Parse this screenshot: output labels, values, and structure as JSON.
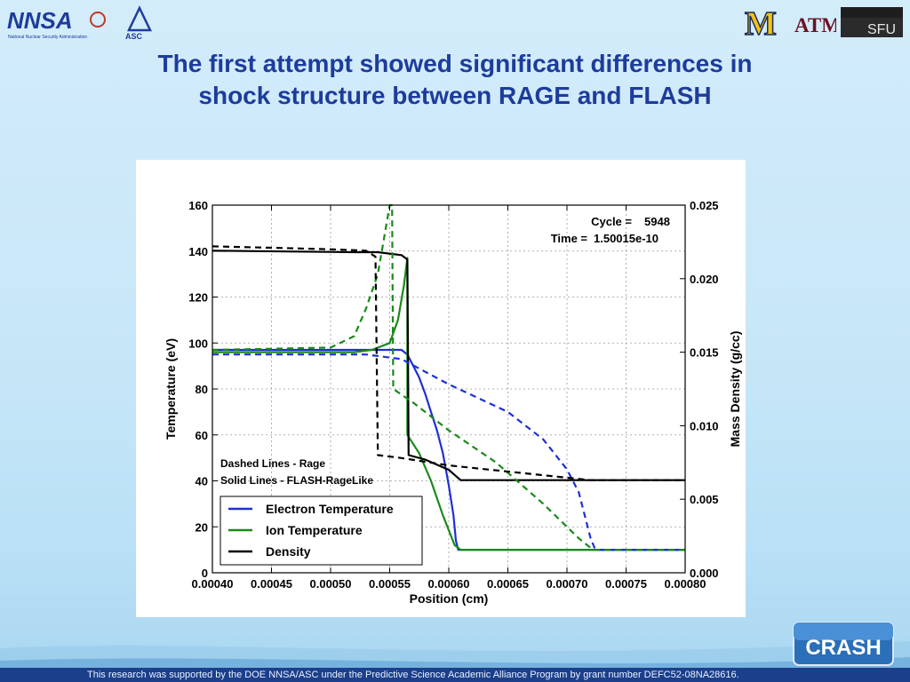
{
  "slide": {
    "title_line1": "The first attempt showed significant differences in",
    "title_line2": "shock structure between RAGE and FLASH",
    "footer": "This research was supported by the DOE NNSA/ASC under the Predictive Science Academic Alliance Program by grant number DEFC52-08NA28616."
  },
  "logos": {
    "nnsa": "NNSA",
    "nnsa_sub": "National Nuclear Security Administration",
    "asc": "ASC",
    "umich": "M",
    "tamu": "ATM",
    "sfu": "SFU",
    "crash": "CRASH"
  },
  "colors": {
    "title": "#1d3c9b",
    "electron": "#1f2fd6",
    "ion": "#1a8a1a",
    "density": "#000000"
  },
  "chart_data": {
    "type": "line",
    "xlabel": "Position (cm)",
    "ylabel": "Temperature (eV)",
    "y2label": "Mass Density (g/cc)",
    "xlim": [
      0.0004,
      0.0008
    ],
    "ylim": [
      0,
      160
    ],
    "y2lim": [
      0.0,
      0.025
    ],
    "x_ticks": [
      "0.00040",
      "0.00045",
      "0.00050",
      "0.00055",
      "0.00060",
      "0.00065",
      "0.00070",
      "0.00075",
      "0.00080"
    ],
    "y_ticks": [
      "0",
      "20",
      "40",
      "60",
      "80",
      "100",
      "120",
      "140",
      "160"
    ],
    "y2_ticks": [
      "0.000",
      "0.005",
      "0.010",
      "0.015",
      "0.020",
      "0.025"
    ],
    "grid": true,
    "cycle_label": "Cycle =",
    "cycle_value": "5948",
    "time_label": "Time =",
    "time_value": "1.50015e-10",
    "note_dashed": "Dashed Lines - Rage",
    "note_solid": "Solid Lines - FLASH-RageLike",
    "legend_position": "bottom-left",
    "series": [
      {
        "name": "Electron Temperature",
        "code": "FLASH-RageLike",
        "axis": "left",
        "dash": false,
        "color": "#1f2fd6",
        "points": [
          [
            0.0004,
            97
          ],
          [
            0.00056,
            97
          ],
          [
            0.000565,
            95
          ],
          [
            0.00057,
            90
          ],
          [
            0.000575,
            85
          ],
          [
            0.00058,
            78
          ],
          [
            0.000585,
            70
          ],
          [
            0.00059,
            62
          ],
          [
            0.000595,
            52
          ],
          [
            0.0006,
            38
          ],
          [
            0.000604,
            25
          ],
          [
            0.000606,
            14
          ],
          [
            0.000608,
            10
          ],
          [
            0.0008,
            10
          ]
        ]
      },
      {
        "name": "Ion Temperature",
        "code": "FLASH-RageLike",
        "axis": "left",
        "dash": false,
        "color": "#1a8a1a",
        "points": [
          [
            0.0004,
            96
          ],
          [
            0.00052,
            96
          ],
          [
            0.000535,
            97
          ],
          [
            0.00055,
            100
          ],
          [
            0.000557,
            110
          ],
          [
            0.000562,
            125
          ],
          [
            0.000565,
            137
          ],
          [
            0.000565,
            60
          ],
          [
            0.000575,
            52
          ],
          [
            0.000585,
            40
          ],
          [
            0.000595,
            25
          ],
          [
            0.000605,
            12
          ],
          [
            0.00061,
            10
          ],
          [
            0.0008,
            10
          ]
        ]
      },
      {
        "name": "Density",
        "code": "FLASH-RageLike",
        "axis": "right",
        "dash": false,
        "color": "#000000",
        "points": [
          [
            0.0004,
            0.0219
          ],
          [
            0.00052,
            0.0218
          ],
          [
            0.00054,
            0.0218
          ],
          [
            0.00056,
            0.0216
          ],
          [
            0.000565,
            0.0213
          ],
          [
            0.000566,
            0.008
          ],
          [
            0.00058,
            0.0077
          ],
          [
            0.0006,
            0.007
          ],
          [
            0.00061,
            0.0063
          ],
          [
            0.0008,
            0.0063
          ]
        ]
      },
      {
        "name": "Electron Temperature",
        "code": "Rage",
        "axis": "left",
        "dash": true,
        "color": "#1f2fd6",
        "points": [
          [
            0.0004,
            95
          ],
          [
            0.00053,
            95
          ],
          [
            0.00056,
            93
          ],
          [
            0.0006,
            82
          ],
          [
            0.00065,
            70
          ],
          [
            0.00068,
            58
          ],
          [
            0.0007,
            45
          ],
          [
            0.00071,
            35
          ],
          [
            0.00072,
            15
          ],
          [
            0.000724,
            10
          ],
          [
            0.0008,
            10
          ]
        ]
      },
      {
        "name": "Ion Temperature",
        "code": "Rage",
        "axis": "left",
        "dash": true,
        "color": "#1a8a1a",
        "points": [
          [
            0.0004,
            97
          ],
          [
            0.0005,
            98
          ],
          [
            0.00052,
            103
          ],
          [
            0.00053,
            115
          ],
          [
            0.00054,
            130
          ],
          [
            0.000545,
            145
          ],
          [
            0.00055,
            160
          ],
          [
            0.000552,
            160
          ],
          [
            0.000553,
            80
          ],
          [
            0.00057,
            74
          ],
          [
            0.0006,
            62
          ],
          [
            0.00064,
            48
          ],
          [
            0.00068,
            30
          ],
          [
            0.00071,
            15
          ],
          [
            0.000722,
            10
          ],
          [
            0.0008,
            10
          ]
        ]
      },
      {
        "name": "Density",
        "code": "Rage",
        "axis": "right",
        "dash": true,
        "color": "#000000",
        "points": [
          [
            0.0004,
            0.0222
          ],
          [
            0.00045,
            0.0221
          ],
          [
            0.0005,
            0.022
          ],
          [
            0.00053,
            0.0219
          ],
          [
            0.000538,
            0.0215
          ],
          [
            0.00054,
            0.008
          ],
          [
            0.00056,
            0.0078
          ],
          [
            0.0006,
            0.0073
          ],
          [
            0.00066,
            0.0068
          ],
          [
            0.00072,
            0.0063
          ],
          [
            0.0008,
            0.0063
          ]
        ]
      }
    ]
  }
}
